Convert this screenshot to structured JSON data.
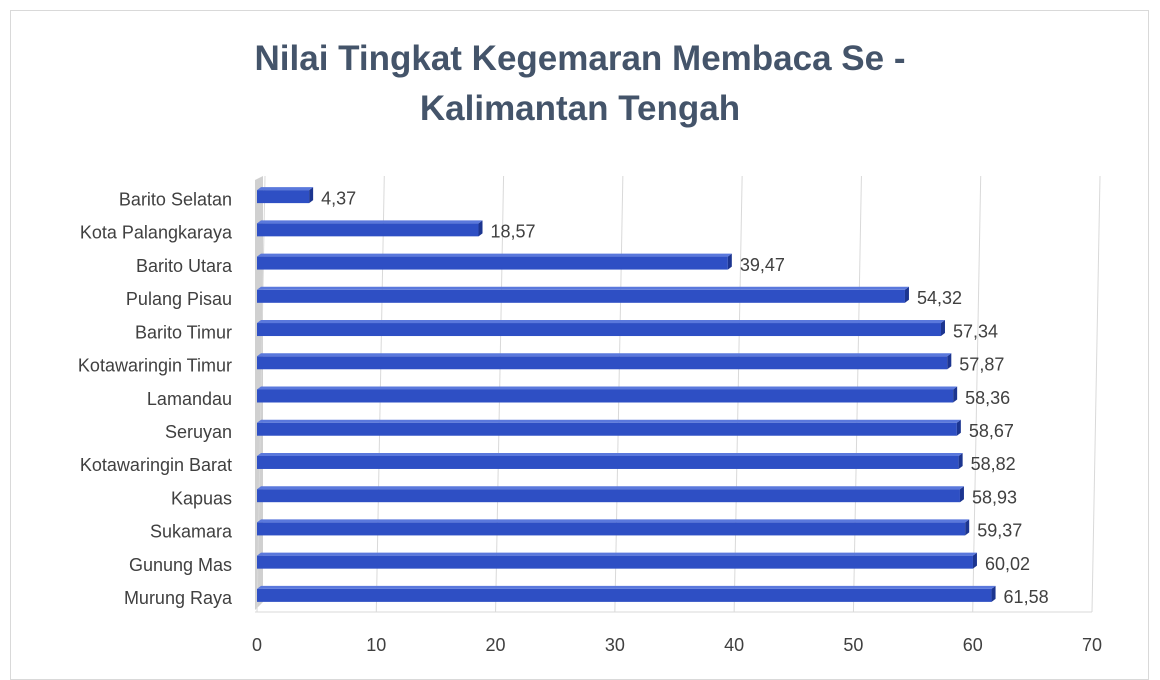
{
  "chart_data": {
    "type": "bar",
    "orientation": "horizontal",
    "title": "Nilai Tingkat Kegemaran Membaca Se - Kalimantan Tengah",
    "categories": [
      "Barito Selatan",
      "Kota Palangkaraya",
      "Barito Utara",
      "Pulang Pisau",
      "Barito Timur",
      "Kotawaringin Timur",
      "Lamandau",
      "Seruyan",
      "Kotawaringin Barat",
      "Kapuas",
      "Sukamara",
      "Gunung Mas",
      "Murung Raya"
    ],
    "values": [
      4.37,
      18.57,
      39.47,
      54.32,
      57.34,
      57.87,
      58.36,
      58.67,
      58.82,
      58.93,
      59.37,
      60.02,
      61.58
    ],
    "value_labels": [
      "4,37",
      "18,57",
      "39,47",
      "54,32",
      "57,34",
      "57,87",
      "58,36",
      "58,67",
      "58,82",
      "58,93",
      "59,37",
      "60,02",
      "61,58"
    ],
    "color": "#2e4fc4",
    "xlim": [
      0,
      70
    ],
    "xticks": [
      0,
      10,
      20,
      30,
      40,
      50,
      60,
      70
    ],
    "grid": true
  }
}
